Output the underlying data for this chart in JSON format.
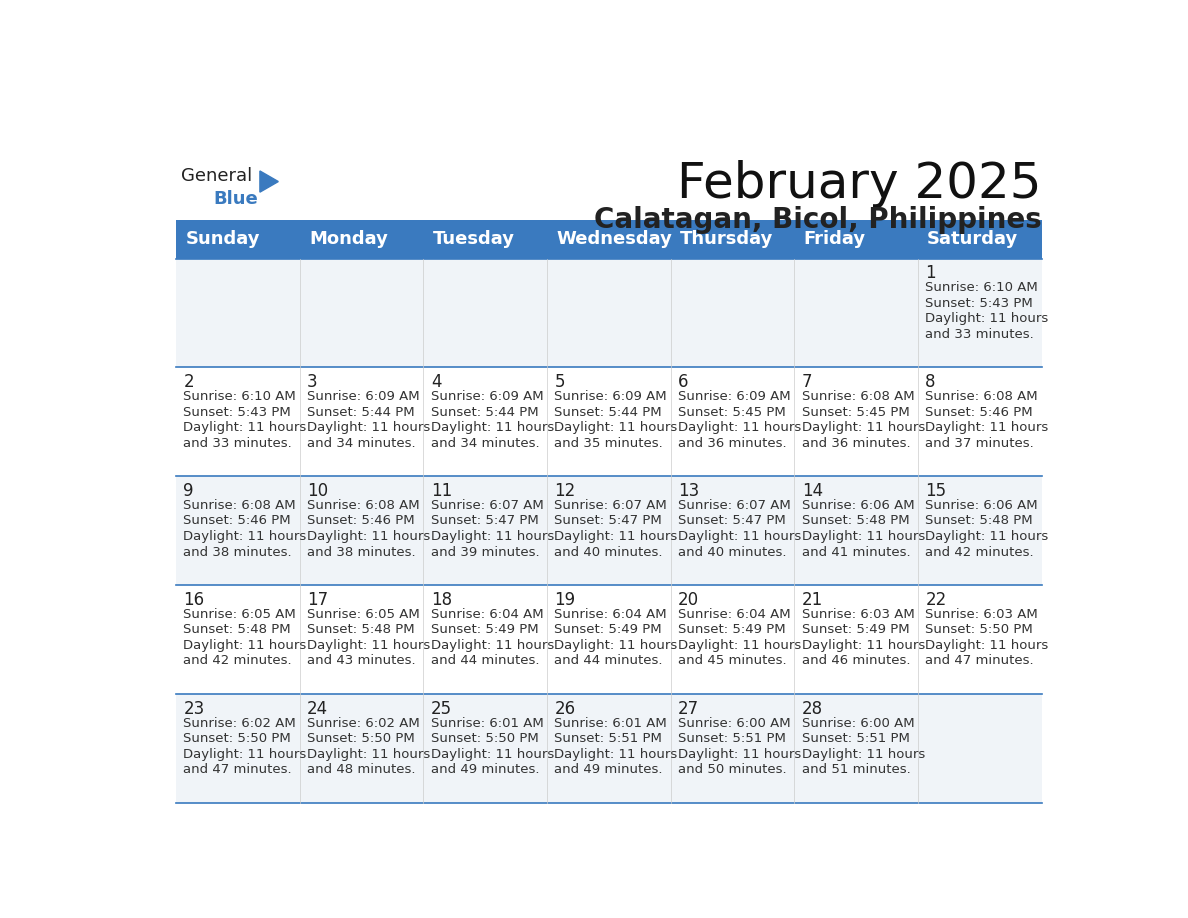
{
  "title": "February 2025",
  "subtitle": "Calatagan, Bicol, Philippines",
  "header_bg": "#3a7abf",
  "header_text": "#ffffff",
  "odd_row_bg": "#f0f4f8",
  "even_row_bg": "#ffffff",
  "day_headers": [
    "Sunday",
    "Monday",
    "Tuesday",
    "Wednesday",
    "Thursday",
    "Friday",
    "Saturday"
  ],
  "title_fontsize": 36,
  "subtitle_fontsize": 20,
  "header_fontsize": 13,
  "day_num_fontsize": 12,
  "info_fontsize": 9.5,
  "days": [
    {
      "date": 1,
      "col": 6,
      "row": 0,
      "sunrise": "6:10 AM",
      "sunset": "5:43 PM",
      "daylight": "11 hours and 33 minutes"
    },
    {
      "date": 2,
      "col": 0,
      "row": 1,
      "sunrise": "6:10 AM",
      "sunset": "5:43 PM",
      "daylight": "11 hours and 33 minutes"
    },
    {
      "date": 3,
      "col": 1,
      "row": 1,
      "sunrise": "6:09 AM",
      "sunset": "5:44 PM",
      "daylight": "11 hours and 34 minutes"
    },
    {
      "date": 4,
      "col": 2,
      "row": 1,
      "sunrise": "6:09 AM",
      "sunset": "5:44 PM",
      "daylight": "11 hours and 34 minutes"
    },
    {
      "date": 5,
      "col": 3,
      "row": 1,
      "sunrise": "6:09 AM",
      "sunset": "5:44 PM",
      "daylight": "11 hours and 35 minutes"
    },
    {
      "date": 6,
      "col": 4,
      "row": 1,
      "sunrise": "6:09 AM",
      "sunset": "5:45 PM",
      "daylight": "11 hours and 36 minutes"
    },
    {
      "date": 7,
      "col": 5,
      "row": 1,
      "sunrise": "6:08 AM",
      "sunset": "5:45 PM",
      "daylight": "11 hours and 36 minutes"
    },
    {
      "date": 8,
      "col": 6,
      "row": 1,
      "sunrise": "6:08 AM",
      "sunset": "5:46 PM",
      "daylight": "11 hours and 37 minutes"
    },
    {
      "date": 9,
      "col": 0,
      "row": 2,
      "sunrise": "6:08 AM",
      "sunset": "5:46 PM",
      "daylight": "11 hours and 38 minutes"
    },
    {
      "date": 10,
      "col": 1,
      "row": 2,
      "sunrise": "6:08 AM",
      "sunset": "5:46 PM",
      "daylight": "11 hours and 38 minutes"
    },
    {
      "date": 11,
      "col": 2,
      "row": 2,
      "sunrise": "6:07 AM",
      "sunset": "5:47 PM",
      "daylight": "11 hours and 39 minutes"
    },
    {
      "date": 12,
      "col": 3,
      "row": 2,
      "sunrise": "6:07 AM",
      "sunset": "5:47 PM",
      "daylight": "11 hours and 40 minutes"
    },
    {
      "date": 13,
      "col": 4,
      "row": 2,
      "sunrise": "6:07 AM",
      "sunset": "5:47 PM",
      "daylight": "11 hours and 40 minutes"
    },
    {
      "date": 14,
      "col": 5,
      "row": 2,
      "sunrise": "6:06 AM",
      "sunset": "5:48 PM",
      "daylight": "11 hours and 41 minutes"
    },
    {
      "date": 15,
      "col": 6,
      "row": 2,
      "sunrise": "6:06 AM",
      "sunset": "5:48 PM",
      "daylight": "11 hours and 42 minutes"
    },
    {
      "date": 16,
      "col": 0,
      "row": 3,
      "sunrise": "6:05 AM",
      "sunset": "5:48 PM",
      "daylight": "11 hours and 42 minutes"
    },
    {
      "date": 17,
      "col": 1,
      "row": 3,
      "sunrise": "6:05 AM",
      "sunset": "5:48 PM",
      "daylight": "11 hours and 43 minutes"
    },
    {
      "date": 18,
      "col": 2,
      "row": 3,
      "sunrise": "6:04 AM",
      "sunset": "5:49 PM",
      "daylight": "11 hours and 44 minutes"
    },
    {
      "date": 19,
      "col": 3,
      "row": 3,
      "sunrise": "6:04 AM",
      "sunset": "5:49 PM",
      "daylight": "11 hours and 44 minutes"
    },
    {
      "date": 20,
      "col": 4,
      "row": 3,
      "sunrise": "6:04 AM",
      "sunset": "5:49 PM",
      "daylight": "11 hours and 45 minutes"
    },
    {
      "date": 21,
      "col": 5,
      "row": 3,
      "sunrise": "6:03 AM",
      "sunset": "5:49 PM",
      "daylight": "11 hours and 46 minutes"
    },
    {
      "date": 22,
      "col": 6,
      "row": 3,
      "sunrise": "6:03 AM",
      "sunset": "5:50 PM",
      "daylight": "11 hours and 47 minutes"
    },
    {
      "date": 23,
      "col": 0,
      "row": 4,
      "sunrise": "6:02 AM",
      "sunset": "5:50 PM",
      "daylight": "11 hours and 47 minutes"
    },
    {
      "date": 24,
      "col": 1,
      "row": 4,
      "sunrise": "6:02 AM",
      "sunset": "5:50 PM",
      "daylight": "11 hours and 48 minutes"
    },
    {
      "date": 25,
      "col": 2,
      "row": 4,
      "sunrise": "6:01 AM",
      "sunset": "5:50 PM",
      "daylight": "11 hours and 49 minutes"
    },
    {
      "date": 26,
      "col": 3,
      "row": 4,
      "sunrise": "6:01 AM",
      "sunset": "5:51 PM",
      "daylight": "11 hours and 49 minutes"
    },
    {
      "date": 27,
      "col": 4,
      "row": 4,
      "sunrise": "6:00 AM",
      "sunset": "5:51 PM",
      "daylight": "11 hours and 50 minutes"
    },
    {
      "date": 28,
      "col": 5,
      "row": 4,
      "sunrise": "6:00 AM",
      "sunset": "5:51 PM",
      "daylight": "11 hours and 51 minutes"
    }
  ],
  "logo_general_color": "#222222",
  "logo_blue_color": "#3a7abf",
  "logo_triangle_color": "#3a7abf"
}
